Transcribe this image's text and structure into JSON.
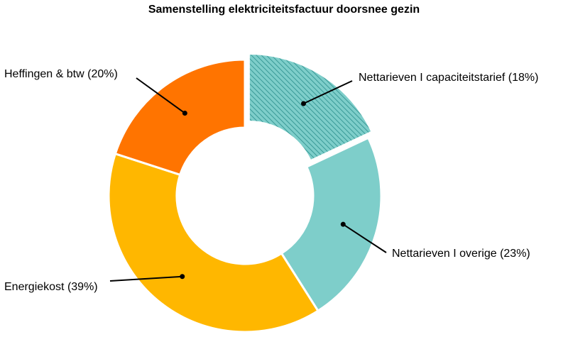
{
  "chart_data": {
    "type": "donut",
    "title": "Samenstelling elektriciteitsfactuur doorsnee gezin",
    "slices": [
      {
        "label": "Nettarieven I capaciteitstarief (18%)",
        "value": 18,
        "color": "#7ececa",
        "pattern": "diagonal-hatch",
        "exploded": true
      },
      {
        "label": "Nettarieven I overige (23%)",
        "value": 23,
        "color": "#7ececa"
      },
      {
        "label": "Energiekost (39%)",
        "value": 39,
        "color": "#ffb700"
      },
      {
        "label": "Heffingen & btw (20%)",
        "value": 20,
        "color": "#ff7400"
      }
    ],
    "legend": "none"
  }
}
